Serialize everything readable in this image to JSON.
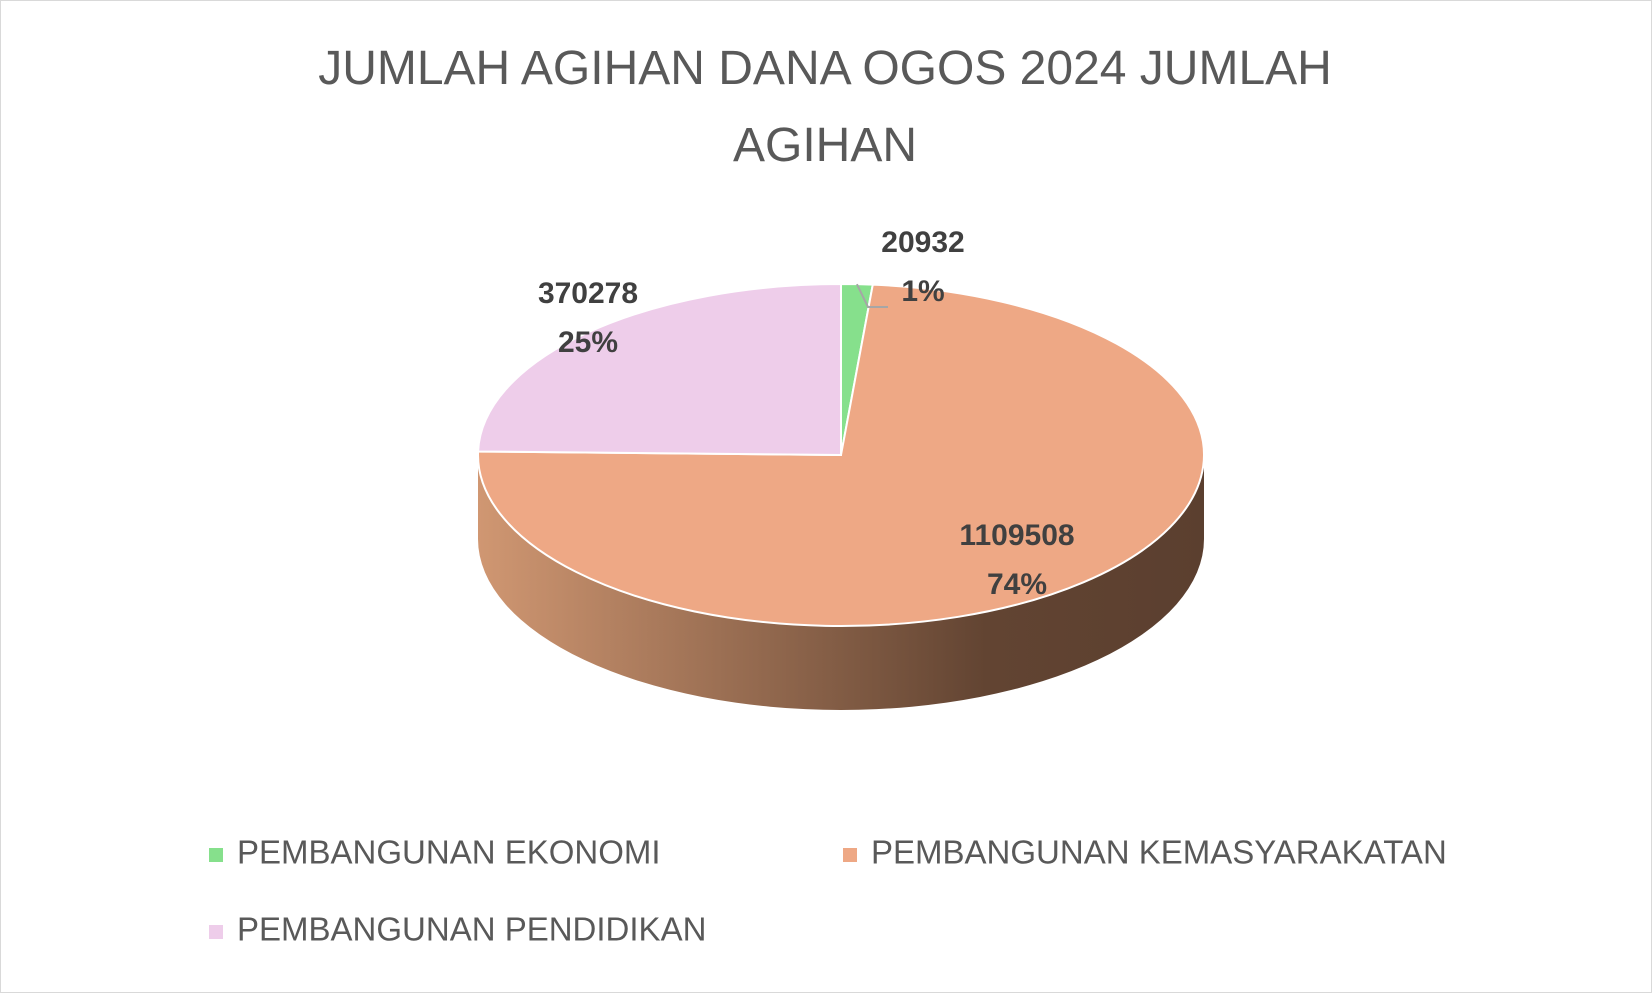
{
  "chart_data": {
    "type": "pie3d",
    "title": "JUMLAH AGIHAN DANA OGOS 2024 JUMLAH AGIHAN",
    "categories": [
      "PEMBANGUNAN EKONOMI",
      "PEMBANGUNAN KEMASYARAKATAN",
      "PEMBANGUNAN PENDIDIKAN"
    ],
    "values": [
      20932,
      1109508,
      370278
    ],
    "percents": [
      1,
      74,
      25
    ],
    "percent_labels": [
      "1%",
      "74%",
      "25%"
    ],
    "colors": [
      "#86e08c",
      "#eea885",
      "#eecdea"
    ],
    "legend": "bottom"
  }
}
